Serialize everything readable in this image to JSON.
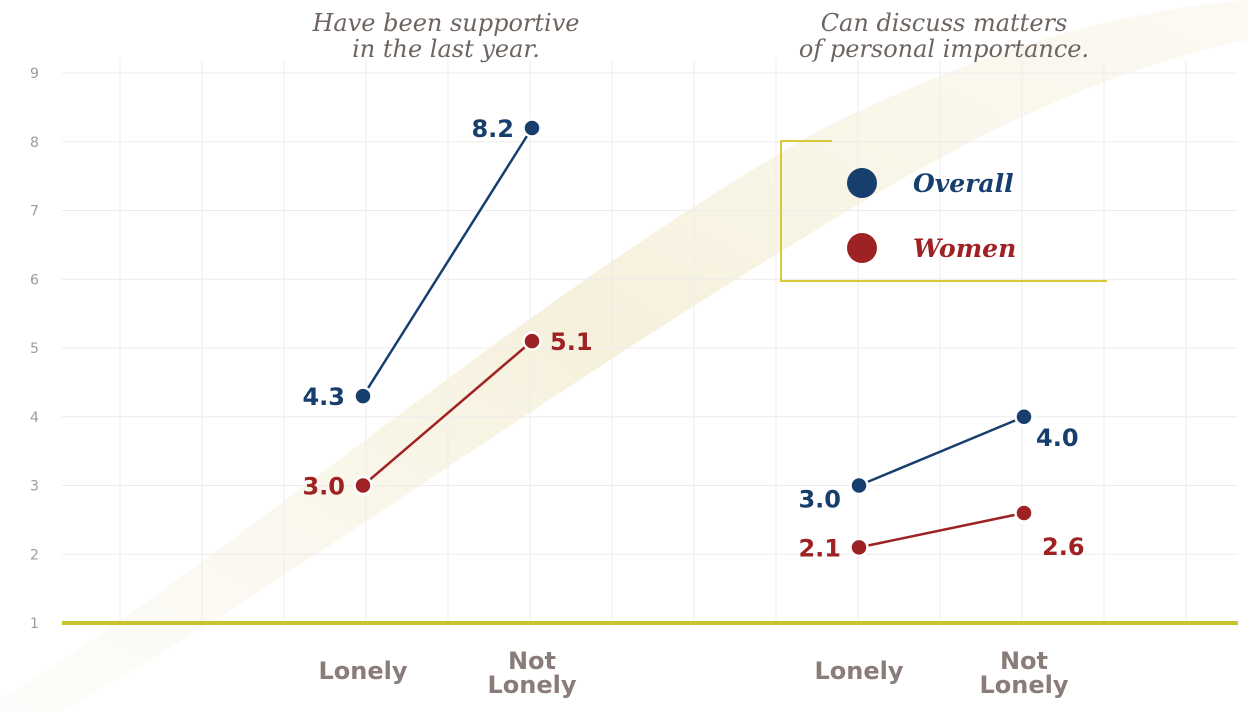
{
  "chart_data": [
    {
      "type": "line",
      "title_lines": [
        "Have been supportive",
        "in the last year."
      ],
      "categories": [
        "Lonely",
        "Not Lonely"
      ],
      "category_lines": [
        [
          "Lonely"
        ],
        [
          "Not",
          "Lonely"
        ]
      ],
      "series": [
        {
          "name": "Overall",
          "values": [
            4.3,
            8.2
          ],
          "value_labels": [
            "4.3",
            "8.2"
          ],
          "color": "#173f6e"
        },
        {
          "name": "Women",
          "values": [
            3.0,
            5.1
          ],
          "value_labels": [
            "3.0",
            "5.1"
          ],
          "color": "#9e2224"
        }
      ],
      "ylim": [
        1,
        9
      ]
    },
    {
      "type": "line",
      "title_lines": [
        "Can discuss matters",
        "of personal importance."
      ],
      "categories": [
        "Lonely",
        "Not Lonely"
      ],
      "category_lines": [
        [
          "Lonely"
        ],
        [
          "Not",
          "Lonely"
        ]
      ],
      "series": [
        {
          "name": "Overall",
          "values": [
            3.0,
            4.0
          ],
          "value_labels": [
            "3.0",
            "4.0"
          ],
          "color": "#173f6e"
        },
        {
          "name": "Women",
          "values": [
            2.1,
            2.6
          ],
          "value_labels": [
            "2.1",
            "2.6"
          ],
          "color": "#9e2224"
        }
      ],
      "ylim": [
        1,
        9
      ]
    }
  ],
  "y_axis": {
    "ticks": [
      "1",
      "2",
      "3",
      "4",
      "5",
      "6",
      "7",
      "8",
      "9"
    ],
    "grid": true
  },
  "legend": {
    "placement": "top-right",
    "items": [
      {
        "label": "Overall",
        "color": "#173f6e"
      },
      {
        "label": "Women",
        "color": "#9e2224"
      }
    ]
  },
  "colors": {
    "baseline": "#c8c330",
    "grid": "#ececec",
    "legend_border": "#d8c83a",
    "tick_text": "#9b9b9b",
    "category_text": "#8a7c78",
    "title_text": "#6e6460"
  }
}
